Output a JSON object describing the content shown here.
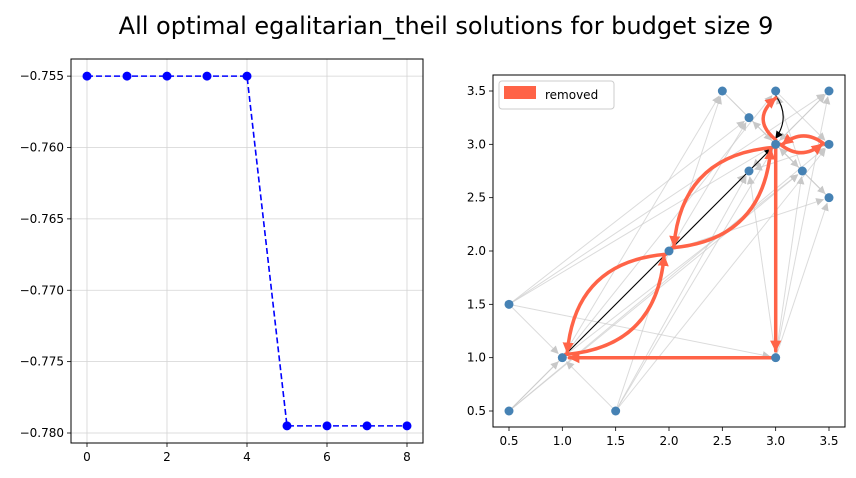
{
  "figure_title": "All optimal egalitarian_theil solutions for budget size 9",
  "colors": {
    "line": "#0000ff",
    "node": "#4682b4",
    "removed": "#ff6347",
    "edge_gray": "#cccccc",
    "arrow_dark": "#000000",
    "grid": "#d3d3d3"
  },
  "chart_data": [
    {
      "type": "line",
      "x": [
        0,
        1,
        2,
        3,
        4,
        5,
        6,
        7,
        8
      ],
      "series": [
        {
          "values": [
            -0.755,
            -0.755,
            -0.755,
            -0.755,
            -0.755,
            -0.7795,
            -0.7795,
            -0.7795,
            -0.7795
          ],
          "style": "dashed",
          "marker": "circle",
          "color": "#0000ff"
        }
      ],
      "xlim": [
        -0.4,
        8.4
      ],
      "ylim": [
        -0.7807,
        -0.7538
      ],
      "xticks": [
        0,
        2,
        4,
        6,
        8
      ],
      "yticks": [
        -0.755,
        -0.76,
        -0.765,
        -0.77,
        -0.775,
        -0.78
      ],
      "xtick_labels": [
        "0",
        "2",
        "4",
        "6",
        "8"
      ],
      "ytick_labels": [
        "−0.755",
        "−0.760",
        "−0.765",
        "−0.770",
        "−0.775",
        "−0.780"
      ],
      "grid": true
    },
    {
      "type": "network",
      "xlim": [
        0.35,
        3.65
      ],
      "ylim": [
        0.35,
        3.65
      ],
      "xticks": [
        0.5,
        1.0,
        1.5,
        2.0,
        2.5,
        3.0,
        3.5
      ],
      "yticks": [
        0.5,
        1.0,
        1.5,
        2.0,
        2.5,
        3.0,
        3.5
      ],
      "xtick_labels": [
        "0.5",
        "1.0",
        "1.5",
        "2.0",
        "2.5",
        "3.0",
        "3.5"
      ],
      "ytick_labels": [
        "0.5",
        "1.0",
        "1.5",
        "2.0",
        "2.5",
        "3.0",
        "3.5"
      ],
      "grid": false,
      "legend": {
        "placement": "top-left",
        "entries": [
          "removed"
        ]
      },
      "nodes": [
        [
          0.5,
          0.5
        ],
        [
          1.5,
          0.5
        ],
        [
          1.0,
          1.0
        ],
        [
          3.0,
          1.0
        ],
        [
          0.5,
          1.5
        ],
        [
          2.0,
          2.0
        ],
        [
          2.75,
          2.75
        ],
        [
          3.25,
          2.75
        ],
        [
          3.5,
          2.5
        ],
        [
          3.0,
          3.0
        ],
        [
          3.5,
          3.0
        ],
        [
          2.75,
          3.25
        ],
        [
          2.5,
          3.5
        ],
        [
          3.0,
          3.5
        ],
        [
          3.5,
          3.5
        ]
      ],
      "gray_edges": [
        [
          [
            0.5,
            0.5
          ],
          [
            3.0,
            3.0
          ]
        ],
        [
          [
            0.5,
            0.5
          ],
          [
            2.75,
            2.75
          ]
        ],
        [
          [
            0.5,
            0.5
          ],
          [
            1.0,
            1.0
          ]
        ],
        [
          [
            0.5,
            0.5
          ],
          [
            3.5,
            3.0
          ]
        ],
        [
          [
            1.5,
            0.5
          ],
          [
            3.0,
            3.0
          ]
        ],
        [
          [
            1.5,
            0.5
          ],
          [
            1.0,
            1.0
          ]
        ],
        [
          [
            1.5,
            0.5
          ],
          [
            2.5,
            3.5
          ]
        ],
        [
          [
            1.5,
            0.5
          ],
          [
            2.75,
            2.75
          ]
        ],
        [
          [
            0.5,
            1.5
          ],
          [
            3.0,
            3.0
          ]
        ],
        [
          [
            0.5,
            1.5
          ],
          [
            1.0,
            1.0
          ]
        ],
        [
          [
            0.5,
            1.5
          ],
          [
            3.5,
            3.5
          ]
        ],
        [
          [
            0.5,
            1.5
          ],
          [
            3.0,
            1.0
          ]
        ],
        [
          [
            0.5,
            1.5
          ],
          [
            2.75,
            3.25
          ]
        ],
        [
          [
            1.0,
            1.0
          ],
          [
            2.5,
            3.5
          ]
        ],
        [
          [
            1.0,
            1.0
          ],
          [
            3.0,
            3.5
          ]
        ],
        [
          [
            1.0,
            1.0
          ],
          [
            3.25,
            2.75
          ]
        ],
        [
          [
            3.0,
            1.0
          ],
          [
            3.5,
            2.5
          ]
        ],
        [
          [
            3.0,
            1.0
          ],
          [
            2.75,
            2.75
          ]
        ],
        [
          [
            3.0,
            1.0
          ],
          [
            3.5,
            3.5
          ]
        ],
        [
          [
            2.0,
            2.0
          ],
          [
            3.5,
            3.5
          ]
        ],
        [
          [
            2.0,
            2.0
          ],
          [
            3.5,
            2.5
          ]
        ],
        [
          [
            2.0,
            2.0
          ],
          [
            2.75,
            3.25
          ]
        ],
        [
          [
            2.5,
            3.5
          ],
          [
            3.0,
            3.0
          ]
        ],
        [
          [
            2.5,
            3.5
          ],
          [
            3.5,
            2.5
          ]
        ],
        [
          [
            3.5,
            3.5
          ],
          [
            3.0,
            3.0
          ]
        ],
        [
          [
            3.5,
            3.5
          ],
          [
            2.75,
            2.75
          ]
        ],
        [
          [
            2.75,
            3.25
          ],
          [
            3.25,
            2.75
          ]
        ],
        [
          [
            3.25,
            2.75
          ],
          [
            3.0,
            3.5
          ]
        ],
        [
          [
            3.5,
            2.5
          ],
          [
            3.0,
            3.0
          ]
        ],
        [
          [
            3.5,
            2.5
          ],
          [
            2.75,
            3.25
          ]
        ],
        [
          [
            3.5,
            3.0
          ],
          [
            2.75,
            2.75
          ]
        ],
        [
          [
            3.0,
            3.5
          ],
          [
            3.5,
            3.0
          ]
        ],
        [
          [
            3.0,
            1.0
          ],
          [
            3.25,
            2.75
          ]
        ],
        [
          [
            1.5,
            0.5
          ],
          [
            3.5,
            3.0
          ]
        ],
        [
          [
            0.5,
            0.5
          ],
          [
            3.25,
            2.75
          ]
        ]
      ],
      "black_edges": [
        {
          "from": [
            1.0,
            1.0
          ],
          "to": [
            3.0,
            3.0
          ],
          "curve": 0
        },
        {
          "from": [
            3.0,
            3.5
          ],
          "to": [
            3.0,
            3.0
          ],
          "curve": -0.35
        }
      ],
      "removed_edges": [
        {
          "from": [
            2.0,
            2.0
          ],
          "to": [
            1.0,
            1.0
          ],
          "curve": 0.42
        },
        {
          "from": [
            1.0,
            1.0
          ],
          "to": [
            2.0,
            2.0
          ],
          "curve": 0.42
        },
        {
          "from": [
            2.0,
            2.0
          ],
          "to": [
            3.0,
            3.0
          ],
          "curve": 0.42
        },
        {
          "from": [
            3.0,
            3.0
          ],
          "to": [
            2.0,
            2.0
          ],
          "curve": 0.42
        },
        {
          "from": [
            3.0,
            3.0
          ],
          "to": [
            3.0,
            1.0
          ],
          "curve": 0
        },
        {
          "from": [
            3.0,
            1.0
          ],
          "to": [
            1.0,
            1.0
          ],
          "curve": 0
        },
        {
          "from": [
            3.0,
            3.0
          ],
          "to": [
            3.0,
            3.5
          ],
          "curve": -0.6
        },
        {
          "from": [
            3.0,
            3.0
          ],
          "to": [
            3.5,
            3.0
          ],
          "curve": 0.4
        },
        {
          "from": [
            3.5,
            3.0
          ],
          "to": [
            3.0,
            3.0
          ],
          "curve": 0.4
        }
      ]
    }
  ]
}
